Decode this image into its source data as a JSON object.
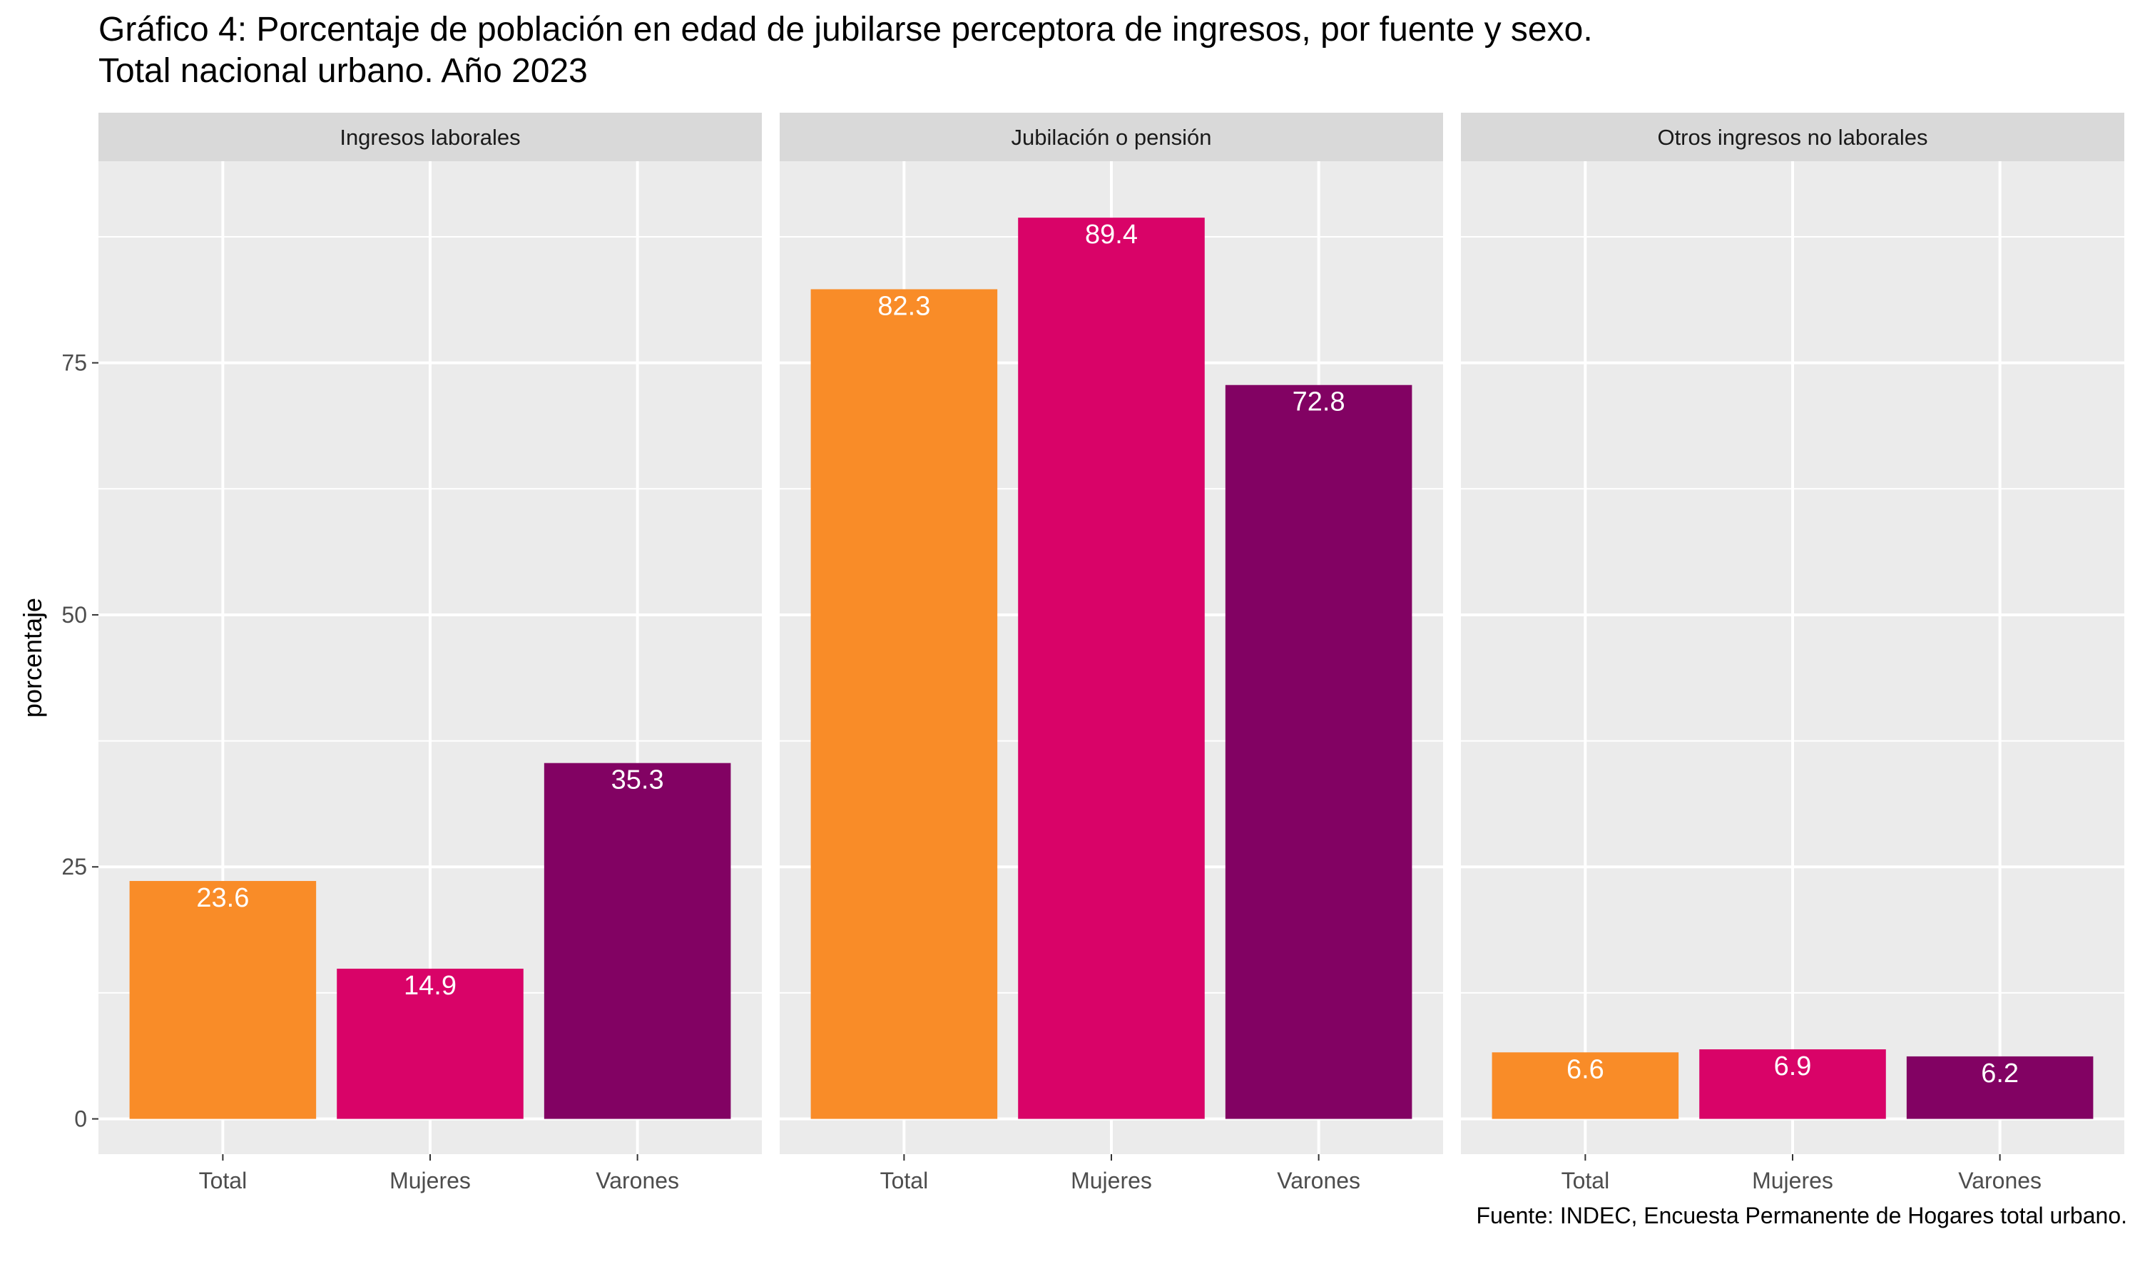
{
  "chart_data": {
    "type": "bar",
    "title": "Gráfico 4: Porcentaje de población en edad de jubilarse perceptora de ingresos, por fuente y sexo.",
    "subtitle": "Total nacional urbano. Año 2023",
    "ylabel": "porcentaje",
    "xlabel": "",
    "caption": "Fuente: INDEC, Encuesta Permanente de Hogares total urbano.",
    "categories": [
      "Total",
      "Mujeres",
      "Varones"
    ],
    "ylim": [
      -3.5,
      95
    ],
    "yticks": [
      0,
      25,
      50,
      75
    ],
    "grid": true,
    "legend": "none",
    "colors": {
      "Total": "#F98C28",
      "Mujeres": "#D90368",
      "Varones": "#820263"
    },
    "facets": [
      {
        "label": "Ingresos laborales",
        "values": [
          23.6,
          14.9,
          35.3
        ]
      },
      {
        "label": "Jubilación o pensión",
        "values": [
          82.3,
          89.4,
          72.8
        ]
      },
      {
        "label": "Otros ingresos no laborales",
        "values": [
          6.6,
          6.9,
          6.2
        ]
      }
    ]
  }
}
